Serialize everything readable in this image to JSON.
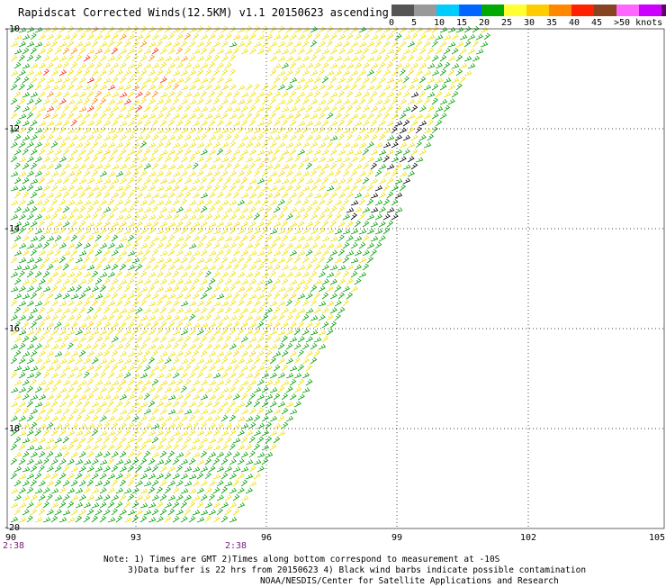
{
  "title": "Rapidscat Corrected Winds(12.5KM) v1.1 20150623 ascending",
  "legend": {
    "colors": [
      "#555555",
      "#999999",
      "#00ccff",
      "#0066ff",
      "#00aa00",
      "#ffff33",
      "#ffcc00",
      "#ff8800",
      "#ff2200",
      "#884422",
      "#ff66ff",
      "#cc00ff",
      "#660066"
    ],
    "ticks": [
      "0",
      "5",
      "10",
      "15",
      "20",
      "25",
      "30",
      "35",
      "40",
      "45",
      ">50 knots"
    ]
  },
  "axes": {
    "x_ticks": [
      "90",
      "93",
      "96",
      "99",
      "102",
      "105"
    ],
    "y_ticks": [
      "-10",
      "-12",
      "-14",
      "-16",
      "-18",
      "-20"
    ],
    "time_labels": [
      "2:38",
      "2:38"
    ]
  },
  "barb_colors": {
    "green": "#00a000",
    "yellow": "#f0e000",
    "gold": "#ffcc00",
    "orange": "#ff8800",
    "red": "#ff2200",
    "black": "#000000",
    "blue": "#0000cc"
  },
  "notes": {
    "line1": "Note: 1) Times are GMT 2)Times along bottom correspond to measurement at -10S",
    "line2": "3)Data buffer is 22 hrs from 20150623 4) Black wind barbs indicate possible contamination",
    "line3": "NOAA/NESDIS/Center for Satellite Applications and Research"
  }
}
